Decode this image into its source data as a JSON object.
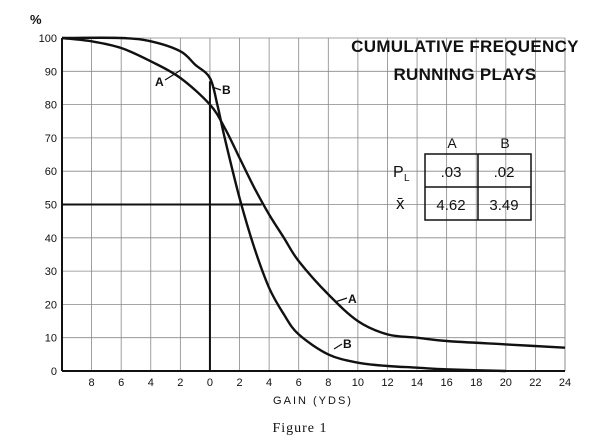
{
  "chart_data": {
    "type": "line",
    "title_line1": "CUMULATIVE FREQUENCY",
    "title_line2": "RUNNING PLAYS",
    "ylabel": "%",
    "xlabel": "GAIN (YDS)",
    "caption": "Figure 1",
    "xlim": [
      -10,
      24
    ],
    "ylim": [
      0,
      100
    ],
    "x_ticks": [
      {
        "value": -8,
        "label": "8"
      },
      {
        "value": -6,
        "label": "6"
      },
      {
        "value": -4,
        "label": "4"
      },
      {
        "value": -2,
        "label": "2"
      },
      {
        "value": 0,
        "label": "0"
      },
      {
        "value": 2,
        "label": "2"
      },
      {
        "value": 4,
        "label": "4"
      },
      {
        "value": 6,
        "label": "6"
      },
      {
        "value": 8,
        "label": "8"
      },
      {
        "value": 10,
        "label": "10"
      },
      {
        "value": 12,
        "label": "12"
      },
      {
        "value": 14,
        "label": "14"
      },
      {
        "value": 16,
        "label": "16"
      },
      {
        "value": 18,
        "label": "18"
      },
      {
        "value": 20,
        "label": "20"
      },
      {
        "value": 22,
        "label": "22"
      },
      {
        "value": 24,
        "label": "24"
      }
    ],
    "y_ticks": [
      0,
      10,
      20,
      30,
      40,
      50,
      60,
      70,
      80,
      90,
      100
    ],
    "grid": true,
    "series": [
      {
        "name": "A",
        "x": [
          -10,
          -8,
          -6,
          -4,
          -2,
          0,
          1,
          2,
          3,
          4,
          5,
          6,
          8,
          10,
          12,
          14,
          16,
          20,
          24
        ],
        "y": [
          100,
          99,
          97,
          93,
          88,
          80,
          73,
          64,
          55,
          47,
          40,
          33,
          23,
          15,
          11,
          10,
          9,
          8,
          7
        ]
      },
      {
        "name": "B",
        "x": [
          -10,
          -6,
          -4,
          -2,
          -1,
          0,
          0.5,
          1,
          2,
          3,
          4,
          5,
          6,
          8,
          10,
          12,
          14,
          16,
          20
        ],
        "y": [
          100,
          100,
          99,
          96,
          92,
          88,
          80,
          70,
          52,
          37,
          25,
          17,
          11,
          5,
          2.5,
          1.5,
          1,
          0.5,
          0
        ]
      }
    ],
    "reference_lines": [
      {
        "type": "horizontal",
        "y": 50,
        "x_from": -10,
        "x_to": 3.5
      },
      {
        "type": "vertical",
        "x": 0,
        "y_from": 0,
        "y_to": 87
      }
    ],
    "table": {
      "columns": [
        "A",
        "B"
      ],
      "rows": [
        {
          "label_main": "P",
          "label_sub": "L",
          "values": [
            ".03",
            ".02"
          ]
        },
        {
          "label_main": "x̄",
          "label_sub": "",
          "values": [
            "4.62",
            "3.49"
          ]
        }
      ]
    }
  }
}
